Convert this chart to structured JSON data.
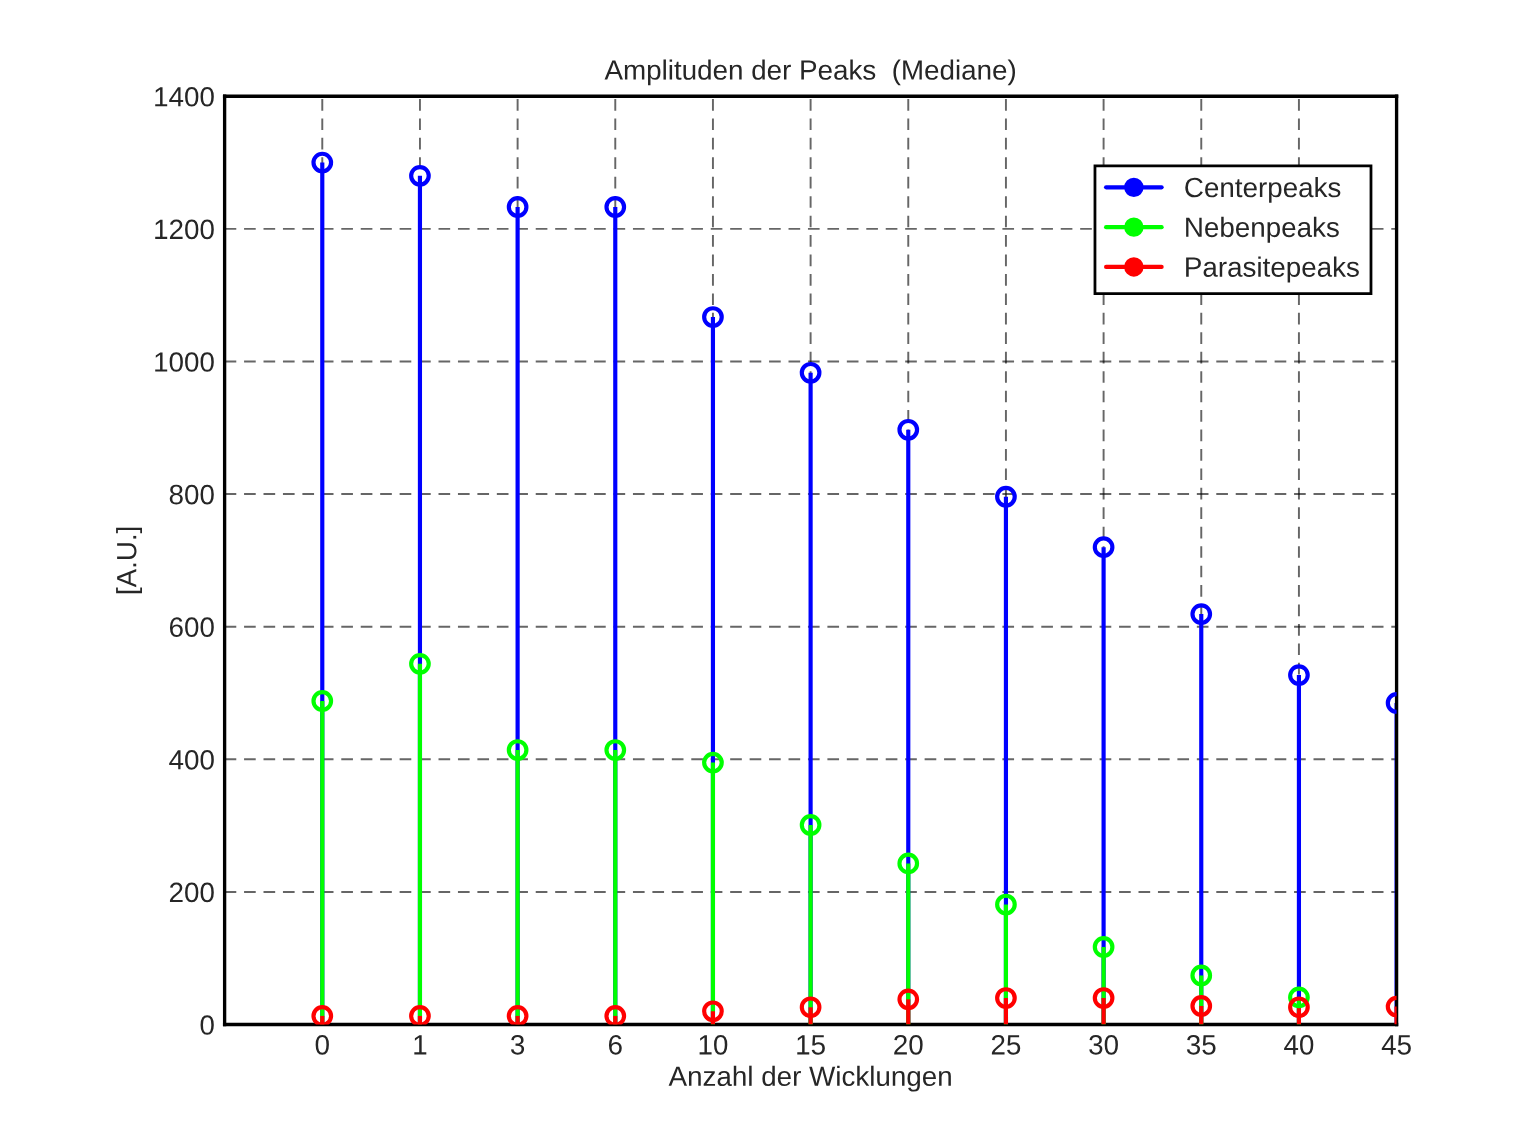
{
  "chart_data": {
    "type": "lollipop",
    "title": "Amplituden der Peaks  (Mediane)",
    "xlabel": "Anzahl der Wicklungen",
    "ylabel": "[A.U.]",
    "categories": [
      "0",
      "1",
      "3",
      "6",
      "10",
      "15",
      "20",
      "25",
      "30",
      "35",
      "40",
      "45"
    ],
    "series": [
      {
        "name": "Centerpeaks",
        "color": "#0000ff",
        "values": [
          1300,
          1280,
          1233,
          1233,
          1067,
          983,
          897,
          796,
          720,
          619,
          527,
          485
        ]
      },
      {
        "name": "Nebenpeaks",
        "color": "#00ff00",
        "values": [
          488,
          544,
          414,
          414,
          395,
          301,
          243,
          181,
          117,
          74,
          41,
          null
        ]
      },
      {
        "name": "Parasitepeaks",
        "color": "#ff0000",
        "values": [
          13,
          13,
          13,
          13,
          20,
          26,
          38,
          40,
          40,
          28,
          26,
          27
        ]
      }
    ],
    "ylim": [
      0,
      1400
    ],
    "yticks": [
      0,
      200,
      400,
      600,
      800,
      1000,
      1200,
      1400
    ],
    "grid": true,
    "legend": "top right",
    "marker": "circle",
    "line_style": "solid"
  }
}
